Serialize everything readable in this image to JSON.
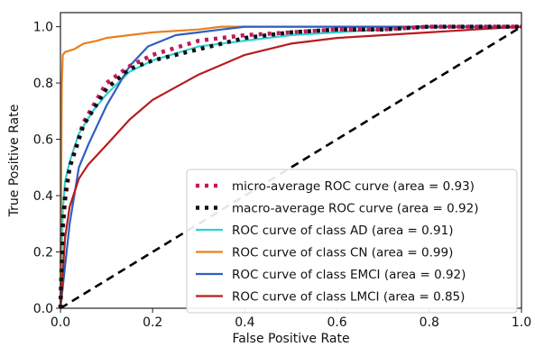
{
  "chart_data": {
    "type": "line",
    "title": "",
    "xlabel": "False Positive Rate",
    "ylabel": "True Positive Rate",
    "xlim": [
      0.0,
      1.0
    ],
    "ylim": [
      0.0,
      1.05
    ],
    "xticks": [
      "0.0",
      "0.2",
      "0.4",
      "0.6",
      "0.8",
      "1.0"
    ],
    "yticks": [
      "0.0",
      "0.2",
      "0.4",
      "0.6",
      "0.8",
      "1.0"
    ],
    "grid": false,
    "legend_position": "lower-right",
    "series": [
      {
        "name": "micro-average ROC curve (area = 0.93)",
        "color": "#c2185b",
        "style": "dotted",
        "x": [
          0,
          0.005,
          0.01,
          0.02,
          0.05,
          0.1,
          0.15,
          0.2,
          0.3,
          0.4,
          0.5,
          0.6,
          0.7,
          0.8,
          0.9,
          1.0
        ],
        "y": [
          0,
          0.28,
          0.38,
          0.5,
          0.66,
          0.8,
          0.86,
          0.9,
          0.95,
          0.97,
          0.98,
          0.99,
          0.99,
          1.0,
          1.0,
          1.0
        ]
      },
      {
        "name": "macro-average ROC curve (area = 0.92)",
        "color": "#111111",
        "style": "dotted",
        "x": [
          0,
          0.005,
          0.01,
          0.02,
          0.05,
          0.1,
          0.15,
          0.2,
          0.3,
          0.4,
          0.5,
          0.6,
          0.7,
          0.8,
          0.9,
          1.0
        ],
        "y": [
          0,
          0.3,
          0.4,
          0.5,
          0.65,
          0.78,
          0.85,
          0.88,
          0.92,
          0.96,
          0.98,
          0.99,
          0.99,
          1.0,
          1.0,
          1.0
        ]
      },
      {
        "name": "ROC curve of class AD (area = 0.91)",
        "color": "#2fd3d3",
        "style": "solid",
        "x": [
          0,
          0.005,
          0.01,
          0.02,
          0.04,
          0.07,
          0.1,
          0.15,
          0.2,
          0.3,
          0.4,
          0.5,
          0.6,
          0.7,
          0.8,
          0.9,
          1.0
        ],
        "y": [
          0,
          0.35,
          0.45,
          0.52,
          0.62,
          0.7,
          0.76,
          0.84,
          0.88,
          0.93,
          0.95,
          0.97,
          0.98,
          0.99,
          1.0,
          1.0,
          1.0
        ]
      },
      {
        "name": "ROC curve of class CN (area = 0.99)",
        "color": "#e8801c",
        "style": "solid",
        "x": [
          0,
          0.003,
          0.005,
          0.01,
          0.03,
          0.05,
          0.08,
          0.1,
          0.15,
          0.2,
          0.3,
          0.35,
          0.4,
          0.6,
          0.8,
          1.0
        ],
        "y": [
          0,
          0.8,
          0.9,
          0.91,
          0.92,
          0.94,
          0.95,
          0.96,
          0.97,
          0.98,
          0.99,
          1.0,
          1.0,
          1.0,
          1.0,
          1.0
        ]
      },
      {
        "name": "ROC curve of class EMCI (area = 0.92)",
        "color": "#2e5fc2",
        "style": "solid",
        "x": [
          0,
          0.02,
          0.04,
          0.06,
          0.1,
          0.15,
          0.19,
          0.25,
          0.3,
          0.35,
          0.4,
          0.5,
          0.6,
          0.8,
          1.0
        ],
        "y": [
          0,
          0.3,
          0.5,
          0.58,
          0.72,
          0.86,
          0.93,
          0.97,
          0.98,
          0.99,
          1.0,
          1.0,
          1.0,
          1.0,
          1.0
        ]
      },
      {
        "name": "ROC curve of class LMCI (area = 0.85)",
        "color": "#b81c1c",
        "style": "solid",
        "x": [
          0,
          0.01,
          0.02,
          0.04,
          0.06,
          0.1,
          0.15,
          0.2,
          0.3,
          0.4,
          0.5,
          0.6,
          0.7,
          0.8,
          0.9,
          1.0
        ],
        "y": [
          0,
          0.25,
          0.36,
          0.46,
          0.51,
          0.58,
          0.67,
          0.74,
          0.83,
          0.9,
          0.94,
          0.96,
          0.97,
          0.98,
          0.99,
          1.0
        ]
      }
    ],
    "reference_line": {
      "x": [
        0,
        1
      ],
      "y": [
        0,
        1
      ],
      "color": "#000000",
      "style": "dashed"
    }
  }
}
